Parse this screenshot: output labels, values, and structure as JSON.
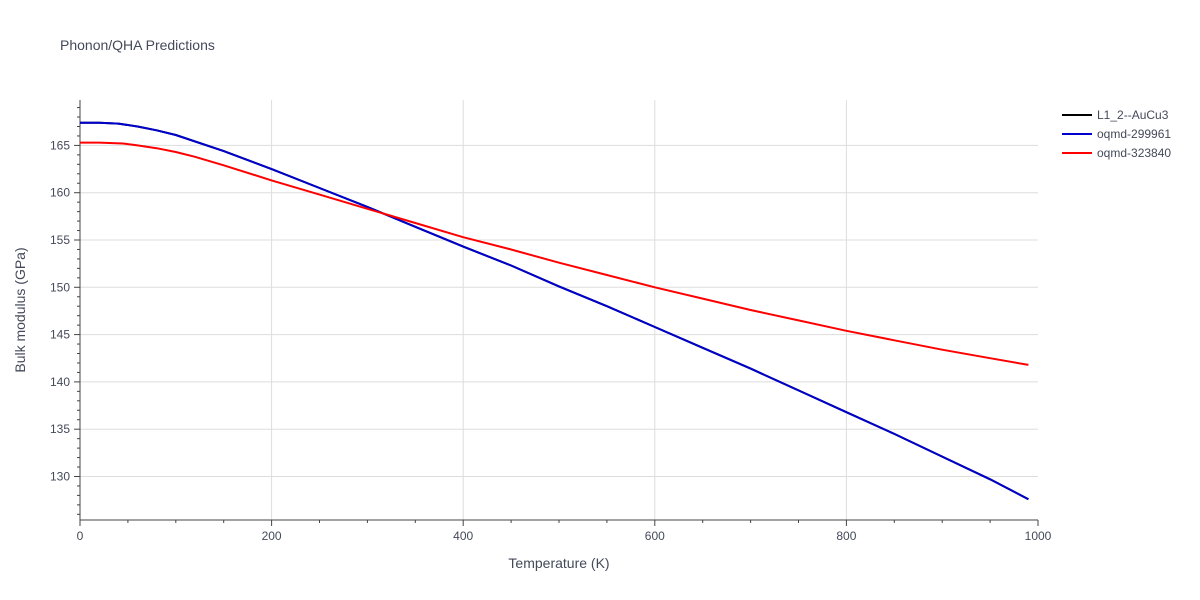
{
  "chart_data": {
    "type": "line",
    "title": "Phonon/QHA Predictions",
    "xlabel": "Temperature (K)",
    "ylabel": "Bulk modulus (GPa)",
    "xlim": [
      0,
      1000
    ],
    "ylim": [
      125.4,
      169.8
    ],
    "x_ticks": [
      0,
      200,
      400,
      600,
      800,
      1000
    ],
    "y_ticks": [
      130,
      135,
      140,
      145,
      150,
      155,
      160,
      165
    ],
    "grid": true,
    "legend_position": "top-right",
    "series": [
      {
        "name": "L1_2--AuCu3",
        "color": "#000000",
        "x": [
          0,
          20,
          40,
          60,
          80,
          100,
          150,
          200,
          250,
          300,
          350,
          400,
          450,
          500,
          550,
          600,
          650,
          700,
          750,
          800,
          850,
          900,
          950,
          990
        ],
        "y": [
          167.4,
          167.4,
          167.3,
          167.0,
          166.6,
          166.1,
          164.4,
          162.5,
          160.5,
          158.5,
          156.4,
          154.3,
          152.3,
          150.1,
          148.0,
          145.8,
          143.6,
          141.4,
          139.1,
          136.8,
          134.5,
          132.1,
          129.7,
          127.6
        ]
      },
      {
        "name": "oqmd-299961",
        "color": "#0000cc",
        "x": [
          0,
          20,
          40,
          60,
          80,
          100,
          150,
          200,
          250,
          300,
          350,
          400,
          450,
          500,
          550,
          600,
          650,
          700,
          750,
          800,
          850,
          900,
          950,
          990
        ],
        "y": [
          167.4,
          167.4,
          167.3,
          167.0,
          166.6,
          166.1,
          164.4,
          162.5,
          160.5,
          158.5,
          156.4,
          154.3,
          152.3,
          150.1,
          148.0,
          145.8,
          143.6,
          141.4,
          139.1,
          136.8,
          134.5,
          132.1,
          129.7,
          127.6
        ]
      },
      {
        "name": "oqmd-323840",
        "color": "#ff0000",
        "x": [
          0,
          20,
          45,
          60,
          80,
          100,
          120,
          150,
          200,
          250,
          300,
          350,
          400,
          450,
          500,
          550,
          600,
          650,
          700,
          750,
          800,
          850,
          900,
          950,
          990
        ],
        "y": [
          165.3,
          165.3,
          165.2,
          165.0,
          164.7,
          164.3,
          163.8,
          162.9,
          161.3,
          159.8,
          158.3,
          156.8,
          155.3,
          154.0,
          152.6,
          151.3,
          150.0,
          148.8,
          147.6,
          146.5,
          145.4,
          144.4,
          143.4,
          142.5,
          141.8
        ]
      }
    ]
  }
}
